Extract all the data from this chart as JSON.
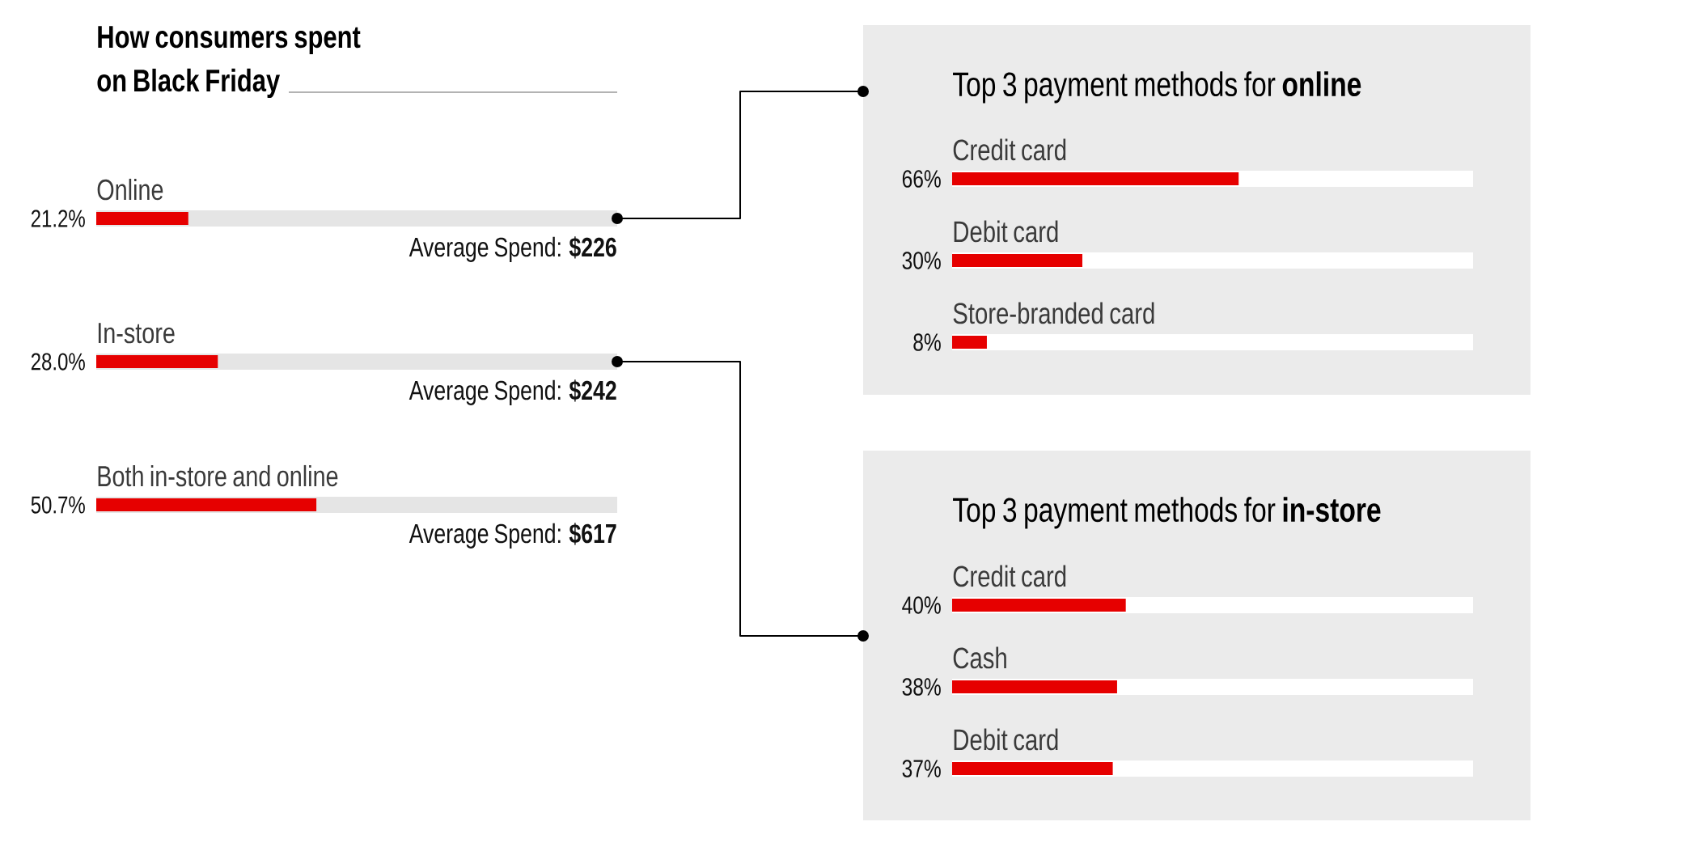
{
  "chart_data": [
    {
      "type": "bar",
      "orientation": "horizontal",
      "title": "How consumers spent on Black Friday",
      "categories": [
        "Online",
        "In-store",
        "Both in-store and online"
      ],
      "values": [
        21.2,
        28.0,
        50.7
      ],
      "value_labels": [
        "21.2%",
        "28.0%",
        "50.7%"
      ],
      "color": "#e60000",
      "xlim": [
        0,
        120
      ],
      "annotations": [
        "Average Spend: **$226**",
        "Average Spend: **$242**",
        "Average Spend: **$617**"
      ]
    },
    {
      "type": "bar",
      "orientation": "horizontal",
      "title": "Top 3 payment methods for **online**",
      "categories": [
        "Credit card",
        "Debit card",
        "Store-branded card"
      ],
      "values": [
        66,
        30,
        8
      ],
      "value_labels": [
        "66%",
        "30%",
        "8%"
      ],
      "color": "#e60000",
      "xlim": [
        0,
        120
      ]
    },
    {
      "type": "bar",
      "orientation": "horizontal",
      "title": "Top 3 payment methods for **in-store**",
      "categories": [
        "Credit card",
        "Cash",
        "Debit card"
      ],
      "values": [
        40,
        38,
        37
      ],
      "value_labels": [
        "40%",
        "38%",
        "37%"
      ],
      "color": "#e60000",
      "xlim": [
        0,
        120
      ]
    }
  ]
}
